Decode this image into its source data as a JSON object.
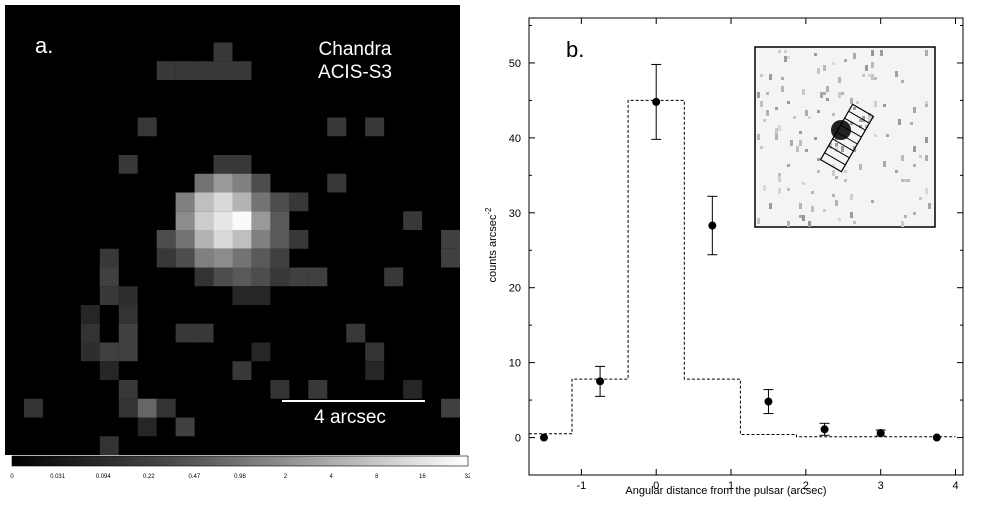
{
  "chart_data": [
    {
      "type": "heatmap",
      "panel_label": "a.",
      "instrument_line1": "Chandra",
      "instrument_line2": "ACIS-S3",
      "scale_bar_label": "4 arcsec",
      "colorbar_ticks": [
        "0",
        "0.031",
        "0.094",
        "0.22",
        "0.47",
        "0.98",
        "2",
        "4",
        "8",
        "16",
        "32"
      ],
      "pixel_grid": {
        "cols": 24,
        "rows": 24
      },
      "pixels": [
        [
          11,
          2,
          0.22
        ],
        [
          8,
          3,
          0.22
        ],
        [
          9,
          3,
          0.22
        ],
        [
          10,
          3,
          0.22
        ],
        [
          11,
          3,
          0.22
        ],
        [
          12,
          3,
          0.22
        ],
        [
          7,
          6,
          0.22
        ],
        [
          17,
          6,
          0.22
        ],
        [
          19,
          6,
          0.22
        ],
        [
          6,
          8,
          0.22
        ],
        [
          11,
          8,
          0.22
        ],
        [
          12,
          8,
          0.22
        ],
        [
          10,
          9,
          0.45
        ],
        [
          11,
          9,
          0.6
        ],
        [
          12,
          9,
          0.5
        ],
        [
          13,
          9,
          0.3
        ],
        [
          17,
          9,
          0.22
        ],
        [
          9,
          10,
          0.5
        ],
        [
          10,
          10,
          0.75
        ],
        [
          11,
          10,
          0.85
        ],
        [
          12,
          10,
          0.7
        ],
        [
          13,
          10,
          0.45
        ],
        [
          14,
          10,
          0.3
        ],
        [
          15,
          10,
          0.22
        ],
        [
          9,
          11,
          0.55
        ],
        [
          10,
          11,
          0.8
        ],
        [
          11,
          11,
          0.9
        ],
        [
          12,
          11,
          0.98
        ],
        [
          13,
          11,
          0.6
        ],
        [
          14,
          11,
          0.35
        ],
        [
          21,
          11,
          0.22
        ],
        [
          8,
          12,
          0.3
        ],
        [
          9,
          12,
          0.45
        ],
        [
          10,
          12,
          0.7
        ],
        [
          11,
          12,
          0.85
        ],
        [
          12,
          12,
          0.75
        ],
        [
          13,
          12,
          0.5
        ],
        [
          14,
          12,
          0.35
        ],
        [
          15,
          12,
          0.22
        ],
        [
          23,
          12,
          0.25
        ],
        [
          8,
          13,
          0.22
        ],
        [
          9,
          13,
          0.3
        ],
        [
          10,
          13,
          0.5
        ],
        [
          11,
          13,
          0.55
        ],
        [
          12,
          13,
          0.45
        ],
        [
          13,
          13,
          0.35
        ],
        [
          14,
          13,
          0.25
        ],
        [
          23,
          13,
          0.25
        ],
        [
          5,
          13,
          0.22
        ],
        [
          5,
          14,
          0.25
        ],
        [
          10,
          14,
          0.2
        ],
        [
          11,
          14,
          0.3
        ],
        [
          12,
          14,
          0.35
        ],
        [
          13,
          14,
          0.3
        ],
        [
          14,
          14,
          0.22
        ],
        [
          15,
          14,
          0.25
        ],
        [
          16,
          14,
          0.25
        ],
        [
          20,
          14,
          0.22
        ],
        [
          5,
          15,
          0.22
        ],
        [
          6,
          15,
          0.18
        ],
        [
          12,
          15,
          0.15
        ],
        [
          13,
          15,
          0.15
        ],
        [
          6,
          16,
          0.2
        ],
        [
          4,
          16,
          0.15
        ],
        [
          4,
          17,
          0.2
        ],
        [
          6,
          17,
          0.25
        ],
        [
          9,
          17,
          0.22
        ],
        [
          10,
          17,
          0.22
        ],
        [
          18,
          17,
          0.22
        ],
        [
          4,
          18,
          0.18
        ],
        [
          5,
          18,
          0.25
        ],
        [
          6,
          18,
          0.25
        ],
        [
          13,
          18,
          0.15
        ],
        [
          19,
          18,
          0.2
        ],
        [
          12,
          19,
          0.22
        ],
        [
          5,
          19,
          0.15
        ],
        [
          19,
          19,
          0.15
        ],
        [
          6,
          20,
          0.22
        ],
        [
          14,
          20,
          0.2
        ],
        [
          16,
          20,
          0.22
        ],
        [
          21,
          20,
          0.15
        ],
        [
          1,
          21,
          0.2
        ],
        [
          6,
          21,
          0.2
        ],
        [
          7,
          21,
          0.4
        ],
        [
          8,
          21,
          0.2
        ],
        [
          23,
          21,
          0.25
        ],
        [
          7,
          22,
          0.15
        ],
        [
          9,
          22,
          0.25
        ],
        [
          5,
          23,
          0.2
        ]
      ]
    },
    {
      "type": "scatter",
      "panel_label": "b.",
      "xlabel": "Angular distance from the pulsar (arcsec)",
      "ylabel": "counts arcsec",
      "ylabel_superscript": "-2",
      "xlim": [
        -1.7,
        4.1
      ],
      "ylim": [
        -5,
        56
      ],
      "xticks": [
        -1,
        0,
        1,
        2,
        3,
        4
      ],
      "xtick_labels": [
        "-1",
        "0",
        "1",
        "2",
        "3",
        "4"
      ],
      "yticks": [
        0,
        10,
        20,
        30,
        40,
        50
      ],
      "ytick_labels": [
        "0",
        "10",
        "20",
        "30",
        "40",
        "50"
      ],
      "points": [
        {
          "x": -1.5,
          "y": 0.0,
          "err": 0
        },
        {
          "x": -0.75,
          "y": 7.5,
          "err": 2.0
        },
        {
          "x": 0.0,
          "y": 44.8,
          "err": 5.0
        },
        {
          "x": 0.75,
          "y": 28.3,
          "err": 3.9
        },
        {
          "x": 1.5,
          "y": 4.8,
          "err": 1.6
        },
        {
          "x": 2.25,
          "y": 1.1,
          "err": 0.8
        },
        {
          "x": 3.0,
          "y": 0.6,
          "err": 0.4
        },
        {
          "x": 3.75,
          "y": 0.0,
          "err": 0
        }
      ],
      "model_steps": [
        {
          "x0": -1.7,
          "x1": -1.125,
          "y": 0.5
        },
        {
          "x0": -1.125,
          "x1": -0.375,
          "y": 7.8
        },
        {
          "x0": -0.375,
          "x1": 0.375,
          "y": 45.0
        },
        {
          "x0": 0.375,
          "x1": 1.125,
          "y": 7.8
        },
        {
          "x0": 1.125,
          "x1": 1.875,
          "y": 0.4
        },
        {
          "x0": 1.875,
          "x1": 4.0,
          "y": 0.1
        }
      ]
    }
  ]
}
